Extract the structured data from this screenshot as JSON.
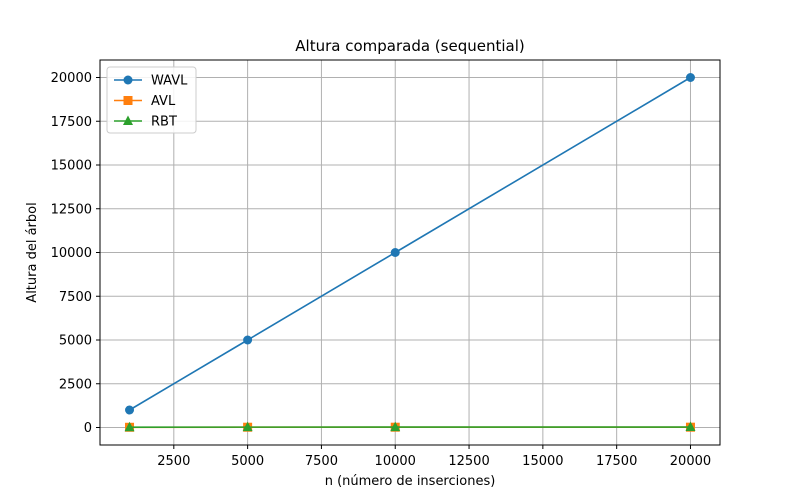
{
  "chart_data": {
    "type": "line",
    "title": "Altura comparada (sequential)",
    "xlabel": "n (número de inserciones)",
    "ylabel": "Altura del árbol",
    "xlim": [
      0,
      21000
    ],
    "ylim": [
      -1000,
      21000
    ],
    "xticks": [
      2500,
      5000,
      7500,
      10000,
      12500,
      15000,
      17500,
      20000
    ],
    "yticks": [
      0,
      2500,
      5000,
      7500,
      10000,
      12500,
      15000,
      17500,
      20000
    ],
    "grid": true,
    "legend_position": "top-left",
    "x": [
      1000,
      5000,
      10000,
      20000
    ],
    "series": [
      {
        "name": "WAVL",
        "values": [
          1000,
          5000,
          10000,
          20000
        ],
        "color": "#1f77b4",
        "marker": "circle"
      },
      {
        "name": "AVL",
        "values": [
          13,
          16,
          17,
          18
        ],
        "color": "#ff7f0e",
        "marker": "square"
      },
      {
        "name": "RBT",
        "values": [
          17,
          22,
          24,
          26
        ],
        "color": "#2ca02c",
        "marker": "triangle"
      }
    ]
  }
}
